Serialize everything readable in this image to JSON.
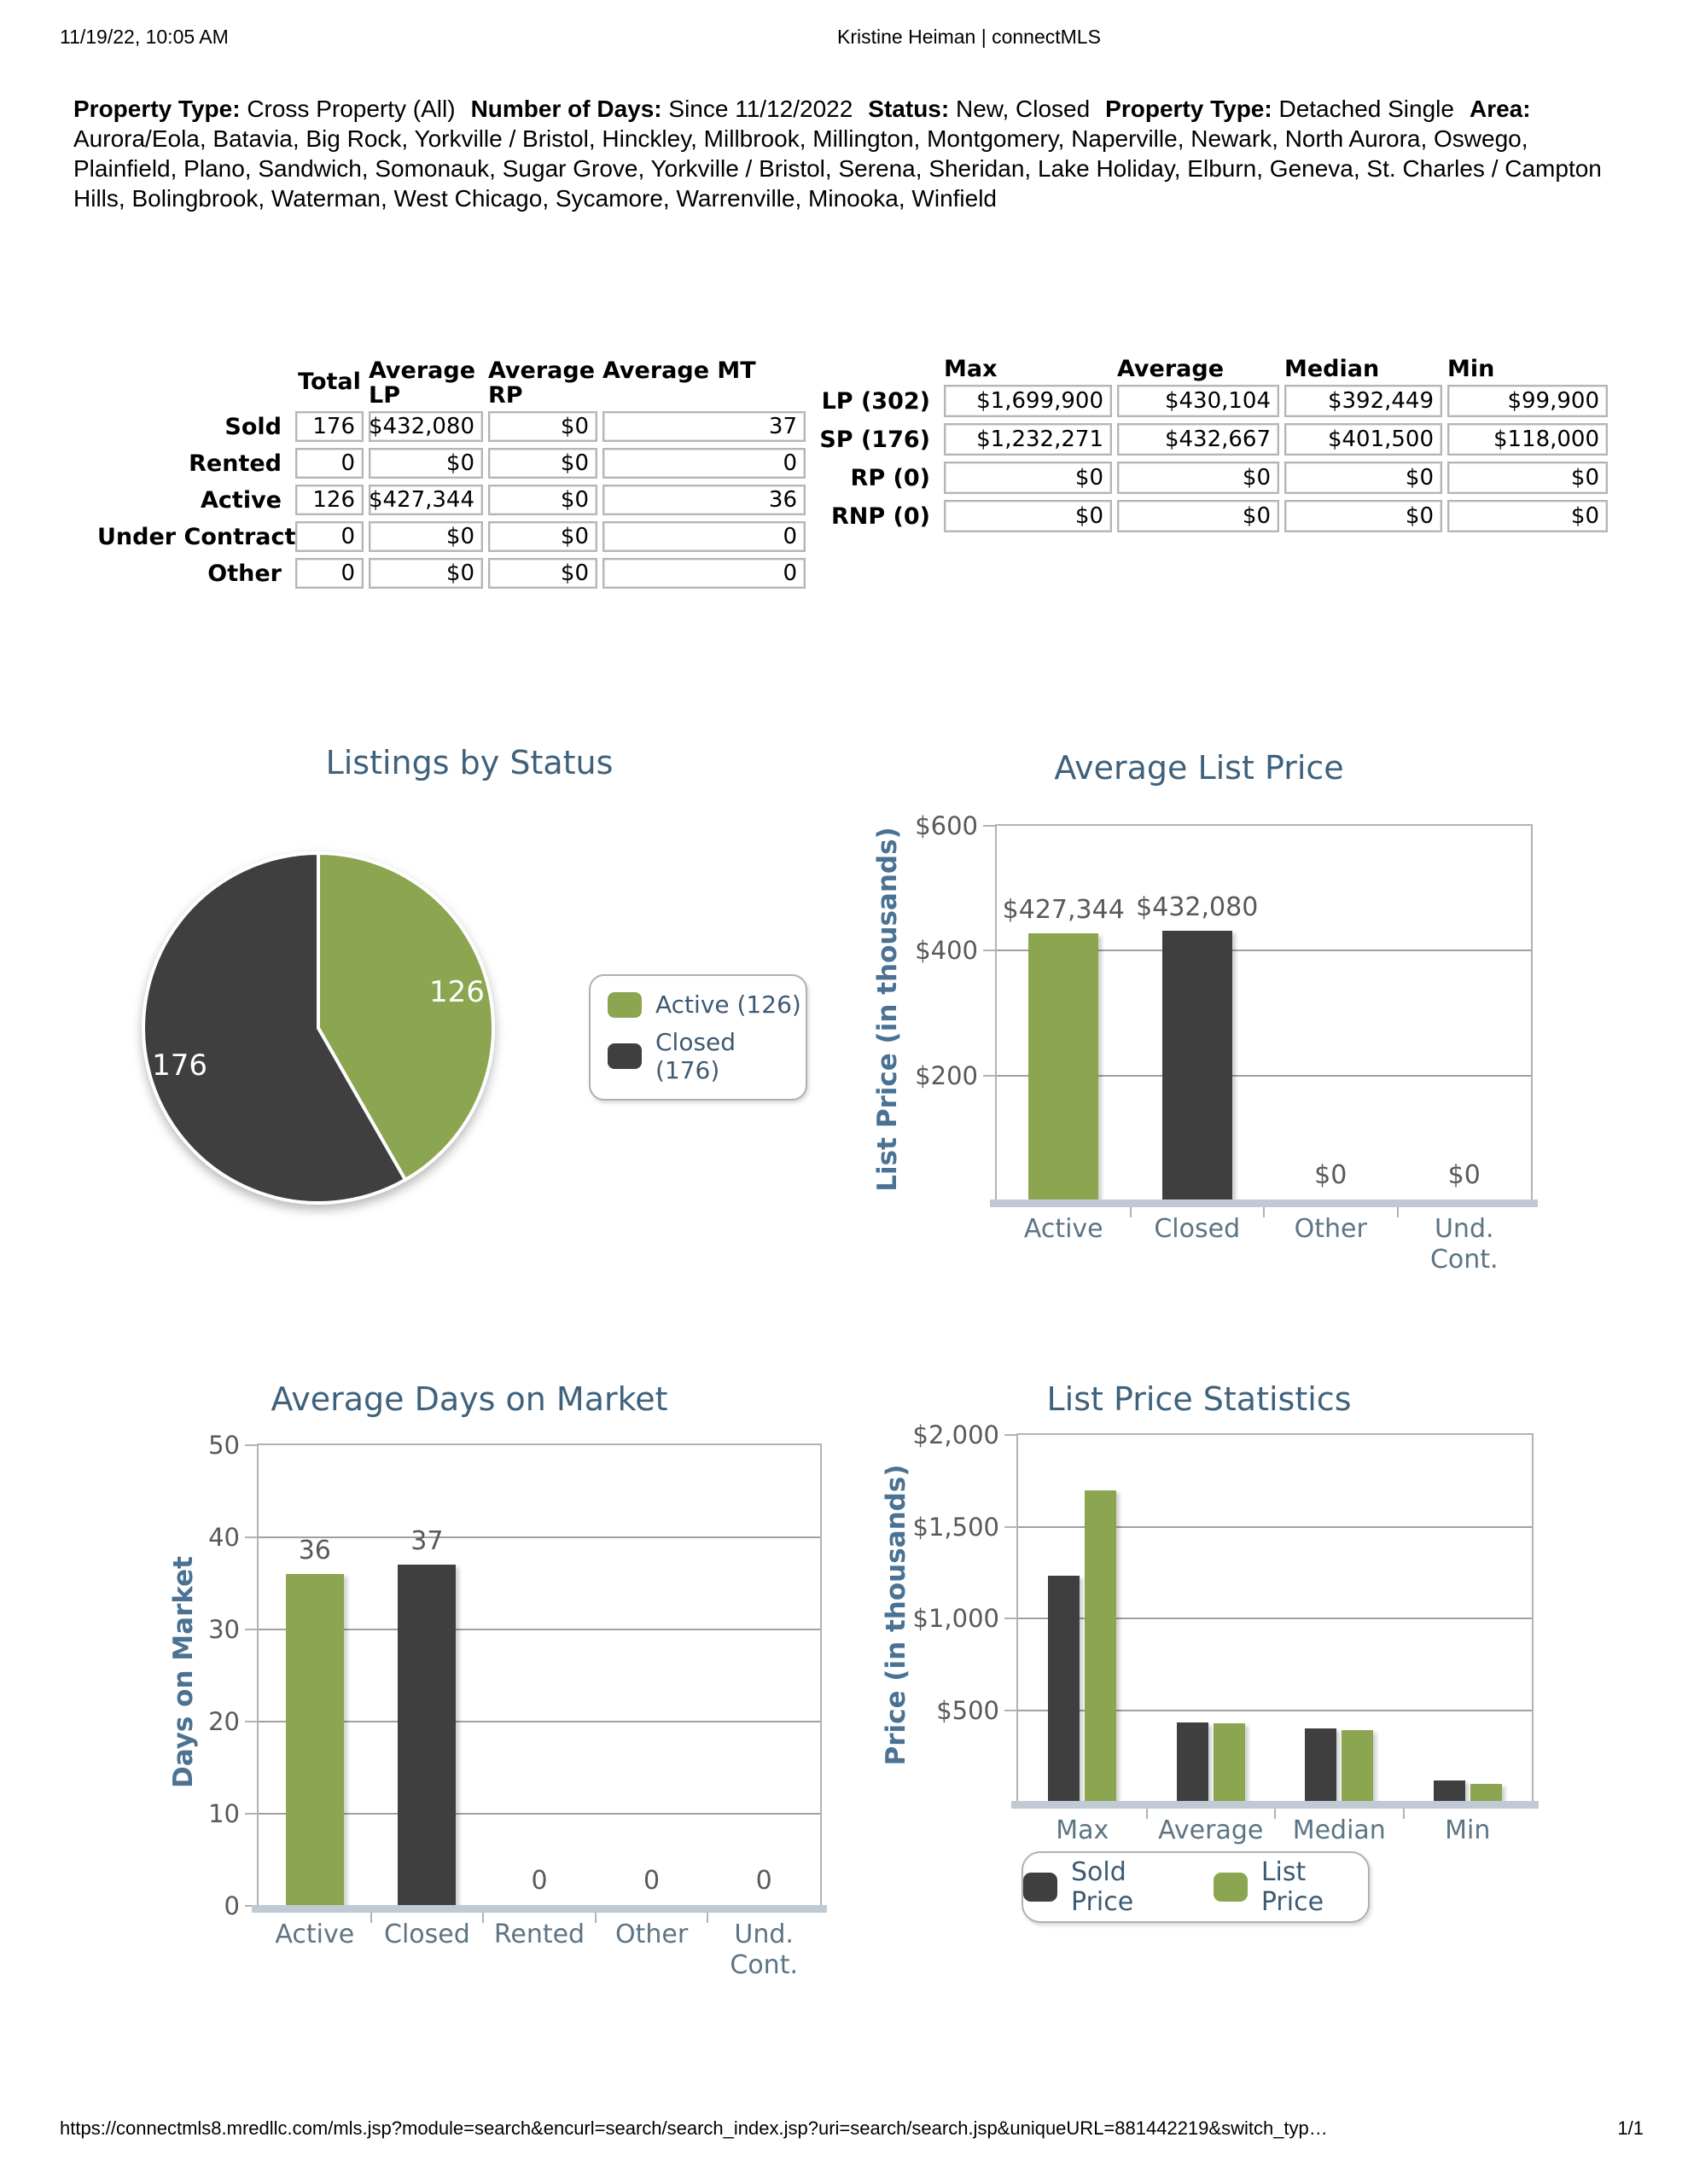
{
  "header": {
    "datetime": "11/19/22, 10:05 AM",
    "title": "Kristine Heiman | connectMLS"
  },
  "criteria": {
    "segments": [
      {
        "label": "Property Type:",
        "value": "Cross Property (All)"
      },
      {
        "label": "Number of Days:",
        "value": "Since 11/12/2022"
      },
      {
        "label": "Status:",
        "value": "New, Closed"
      },
      {
        "label": "Property Type:",
        "value": "Detached Single"
      },
      {
        "label": "Area:",
        "value": "Aurora/Eola, Batavia, Big Rock, Yorkville / Bristol, Hinckley, Millbrook, Millington, Montgomery, Naperville, Newark, North Aurora, Oswego, Plainfield, Plano, Sandwich, Somonauk, Sugar Grove, Yorkville / Bristol, Serena, Sheridan, Lake Holiday, Elburn, Geneva, St. Charles / Campton Hills, Bolingbrook, Waterman, West Chicago, Sycamore, Warrenville, Minooka, Winfield"
      }
    ]
  },
  "summary_table": {
    "col_headers": [
      "Total",
      "Average\nLP",
      "Average\nRP",
      "Average MT"
    ],
    "rows": [
      {
        "label": "Sold",
        "total": "176",
        "avg_lp": "$432,080",
        "avg_rp": "$0",
        "avg_mt": "37"
      },
      {
        "label": "Rented",
        "total": "0",
        "avg_lp": "$0",
        "avg_rp": "$0",
        "avg_mt": "0"
      },
      {
        "label": "Active",
        "total": "126",
        "avg_lp": "$427,344",
        "avg_rp": "$0",
        "avg_mt": "36"
      },
      {
        "label": "Under Contract",
        "total": "0",
        "avg_lp": "$0",
        "avg_rp": "$0",
        "avg_mt": "0"
      },
      {
        "label": "Other",
        "total": "0",
        "avg_lp": "$0",
        "avg_rp": "$0",
        "avg_mt": "0"
      }
    ]
  },
  "stats_table": {
    "col_headers": [
      "Max",
      "Average",
      "Median",
      "Min"
    ],
    "rows": [
      {
        "label": "LP (302)",
        "max": "$1,699,900",
        "average": "$430,104",
        "median": "$392,449",
        "min": "$99,900"
      },
      {
        "label": "SP (176)",
        "max": "$1,232,271",
        "average": "$432,667",
        "median": "$401,500",
        "min": "$118,000"
      },
      {
        "label": "RP (0)",
        "max": "$0",
        "average": "$0",
        "median": "$0",
        "min": "$0"
      },
      {
        "label": "RNP (0)",
        "max": "$0",
        "average": "$0",
        "median": "$0",
        "min": "$0"
      }
    ]
  },
  "colors": {
    "accent_green": "#8ba551",
    "accent_dark": "#3f3f3f",
    "heading_blue": "#3e617c"
  },
  "chart_data": [
    {
      "type": "pie",
      "title": "Listings by Status",
      "labels": [
        "Active",
        "Closed"
      ],
      "values": [
        126,
        176
      ],
      "colors": [
        "#8ba551",
        "#3f3f3f"
      ],
      "slice_labels": [
        "126",
        "176"
      ],
      "legend": [
        {
          "label": "Active (126)",
          "color": "#8ba551"
        },
        {
          "label": "Closed (176)",
          "color": "#3f3f3f"
        }
      ],
      "legend_position": "right"
    },
    {
      "type": "bar",
      "title": "Average List Price",
      "ylabel": "List Price (in thousands)",
      "categories": [
        "Active",
        "Closed",
        "Other",
        "Und.\nCont."
      ],
      "values": [
        427.344,
        432.08,
        0,
        0
      ],
      "value_labels": [
        "$427,344",
        "$432,080",
        "$0",
        "$0"
      ],
      "bar_colors": [
        "#8ba551",
        "#3f3f3f",
        null,
        null
      ],
      "ylim": [
        0,
        600
      ],
      "ticks": [
        [
          600,
          "$600"
        ],
        [
          400,
          "$400"
        ],
        [
          200,
          "$200"
        ]
      ],
      "grid": true
    },
    {
      "type": "bar",
      "title": "Average Days on Market",
      "ylabel": "Days on Market",
      "categories": [
        "Active",
        "Closed",
        "Rented",
        "Other",
        "Und.\nCont."
      ],
      "values": [
        36,
        37,
        0,
        0,
        0
      ],
      "value_labels": [
        "36",
        "37",
        "0",
        "0",
        "0"
      ],
      "bar_colors": [
        "#8ba551",
        "#3f3f3f",
        null,
        null,
        null
      ],
      "ylim": [
        0,
        50
      ],
      "ticks": [
        [
          50,
          "50"
        ],
        [
          40,
          "40"
        ],
        [
          30,
          "30"
        ],
        [
          20,
          "20"
        ],
        [
          10,
          "10"
        ],
        [
          0,
          "0"
        ]
      ],
      "grid": true
    },
    {
      "type": "bar",
      "title": "List Price Statistics",
      "ylabel": "Price (in thousands)",
      "categories": [
        "Max",
        "Average",
        "Median",
        "Min"
      ],
      "series": [
        {
          "name": "Sold Price",
          "color": "#3f3f3f",
          "values": [
            1232.271,
            432.667,
            401.5,
            118.0
          ]
        },
        {
          "name": "List Price",
          "color": "#8ba551",
          "values": [
            1699.9,
            430.104,
            392.449,
            99.9
          ]
        }
      ],
      "ylim": [
        0,
        2000
      ],
      "ticks": [
        [
          2000,
          "$2,000"
        ],
        [
          1500,
          "$1,500"
        ],
        [
          1000,
          "$1,000"
        ],
        [
          500,
          "$500"
        ]
      ],
      "grid": true,
      "legend": [
        {
          "label": "Sold Price",
          "color": "#3f3f3f"
        },
        {
          "label": "List Price",
          "color": "#8ba551"
        }
      ],
      "legend_position": "bottom"
    }
  ],
  "footer": {
    "url": "https://connectmls8.mredllc.com/mls.jsp?module=search&encurl=search/search_index.jsp?uri=search/search.jsp&uniqueURL=881442219&switch_typ…",
    "page": "1/1"
  }
}
